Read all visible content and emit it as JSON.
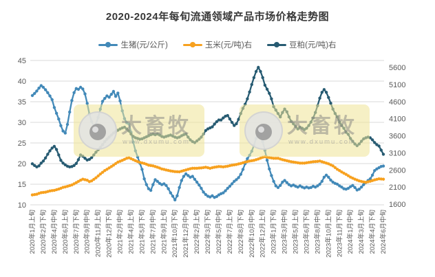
{
  "title": "2020-2024年每旬流通领域产品市场价格走势图",
  "watermark": {
    "brand": "大畜牧",
    "url": "www.dxumu.com"
  },
  "chart_data": {
    "type": "line",
    "title": "2020-2024年每旬流通领域产品市场价格走势图",
    "x_label_every": 5,
    "x_labels": [
      "2020年1月上旬",
      "2020年2月下旬",
      "2020年4月中旬",
      "2020年6月上旬",
      "2020年7月下旬",
      "2020年9月中旬",
      "2020年11月上旬",
      "2020年12月下旬",
      "2021年2月中旬",
      "2021年4月上旬",
      "2021年5月下旬",
      "2021年7月中旬",
      "2021年9月上旬",
      "2021年10月下旬",
      "2021年12月中旬",
      "2022年2月上旬",
      "2022年3月下旬",
      "2022年5月中旬",
      "2022年7月上旬",
      "2022年8月下旬",
      "2022年10月中旬",
      "2022年12月上旬",
      "2023年1月下旬",
      "2023年3月中旬",
      "2023年5月上旬",
      "2023年6月下旬",
      "2023年8月中旬",
      "2023年10月上旬",
      "2023年11月下旬",
      "2024年1月中旬",
      "2024年3月上旬",
      "2024年4月下旬",
      "2024年6月中旬"
    ],
    "axes": {
      "left": {
        "ticks": [
          45,
          40,
          35,
          30,
          25,
          20,
          15,
          10
        ],
        "min": 10,
        "max": 45
      },
      "right": {
        "ticks": [
          5600,
          5100,
          4600,
          4100,
          3600,
          3100,
          2600,
          2100,
          1600
        ],
        "min": 1600,
        "max": 5600
      }
    },
    "colors": {
      "grid": "#d9d9d9",
      "axis_text": "#595959",
      "title_text": "#383838"
    },
    "series": [
      {
        "name": "生猪(元/公斤)",
        "axis": "left",
        "color": "#4289B8",
        "values": [
          36.5,
          37,
          37.6,
          38.3,
          38.9,
          38.5,
          37.9,
          37.2,
          36.4,
          35.5,
          33.6,
          32.2,
          30.8,
          29.2,
          27.9,
          27.4,
          29.5,
          32.5,
          35.3,
          37.2,
          38.2,
          38,
          38.5,
          38.1,
          36.9,
          34.6,
          32,
          30.2,
          29.1,
          29.6,
          31.2,
          33.2,
          35.1,
          35.8,
          36.4,
          36.1,
          36.8,
          37.5,
          36.3,
          37.1,
          35.2,
          32.8,
          30.9,
          29.9,
          29.6,
          27.6,
          25.2,
          23.1,
          21.6,
          20.1,
          18.6,
          16.3,
          14.9,
          13.9,
          13.5,
          14.9,
          16.1,
          15.7,
          15.2,
          14.9,
          15.1,
          14.7,
          13.9,
          12.9,
          12.1,
          11.2,
          12.2,
          14.2,
          15.9,
          16.9,
          17.5,
          17.1,
          16.7,
          16.9,
          16.2,
          15.5,
          14.8,
          14,
          13.1,
          12.5,
          12.1,
          11.9,
          12.2,
          11.8,
          12,
          12.4,
          12.7,
          12.9,
          13.4,
          14,
          14.5,
          15.1,
          15.7,
          16.1,
          16.6,
          17.4,
          18.6,
          20,
          21.2,
          22,
          23,
          24.4,
          26.1,
          27.9,
          27.1,
          25.3,
          23.2,
          20.8,
          18.7,
          17.1,
          15.7,
          14.6,
          14.2,
          14.7,
          15.5,
          15.9,
          15.4,
          14.9,
          14.6,
          14.8,
          14.5,
          14.3,
          14.6,
          14.3,
          14.1,
          14.3,
          14.1,
          14.2,
          14.5,
          14.3,
          14.6,
          15,
          15.7,
          16.7,
          17.2,
          16.7,
          16,
          15.5,
          15.2,
          15,
          14.6,
          14.3,
          13.9,
          13.8,
          14,
          14.4,
          14.7,
          14.2,
          13.6,
          13.8,
          14.3,
          14.9,
          15.4,
          15.9,
          16.3,
          17.2,
          18.3,
          18.7,
          19,
          19.3,
          19.4
        ]
      },
      {
        "name": "玉米(元/吨)右",
        "axis": "right",
        "color": "#F7A11F",
        "values": [
          1870,
          1880,
          1890,
          1915,
          1935,
          1943,
          1950,
          1968,
          1985,
          1995,
          2005,
          2022,
          2040,
          2065,
          2090,
          2105,
          2120,
          2140,
          2160,
          2195,
          2230,
          2265,
          2300,
          2330,
          2315,
          2300,
          2260,
          2280,
          2325,
          2370,
          2425,
          2480,
          2530,
          2580,
          2620,
          2660,
          2700,
          2740,
          2785,
          2830,
          2855,
          2880,
          2910,
          2940,
          2955,
          2930,
          2900,
          2870,
          2845,
          2820,
          2805,
          2790,
          2765,
          2740,
          2730,
          2720,
          2700,
          2680,
          2655,
          2630,
          2615,
          2600,
          2585,
          2570,
          2560,
          2550,
          2548,
          2545,
          2562,
          2580,
          2600,
          2620,
          2635,
          2650,
          2650,
          2650,
          2655,
          2660,
          2670,
          2680,
          2665,
          2650,
          2665,
          2680,
          2690,
          2700,
          2695,
          2690,
          2700,
          2710,
          2725,
          2740,
          2750,
          2760,
          2775,
          2790,
          2810,
          2830,
          2845,
          2860,
          2870,
          2880,
          2900,
          2920,
          2945,
          2970,
          2985,
          2972,
          2960,
          2950,
          2940,
          2940,
          2940,
          2920,
          2900,
          2885,
          2870,
          2855,
          2840,
          2830,
          2820,
          2810,
          2800,
          2800,
          2800,
          2810,
          2820,
          2830,
          2840,
          2845,
          2850,
          2860,
          2840,
          2820,
          2800,
          2780,
          2750,
          2720,
          2670,
          2620,
          2580,
          2540,
          2505,
          2470,
          2430,
          2390,
          2360,
          2330,
          2305,
          2280,
          2265,
          2250,
          2240,
          2255,
          2270,
          2290,
          2310,
          2325,
          2340,
          2335,
          2330
        ]
      },
      {
        "name": "豆粕(元/吨)右",
        "axis": "right",
        "color": "#275B72",
        "values": [
          2780,
          2730,
          2690,
          2720,
          2800,
          2860,
          2950,
          3060,
          3160,
          3240,
          3290,
          3200,
          3040,
          2880,
          2800,
          2750,
          2710,
          2690,
          2700,
          2730,
          2790,
          2900,
          3040,
          3000,
          2940,
          2890,
          2910,
          2960,
          3040,
          3120,
          3190,
          3260,
          3340,
          3430,
          3500,
          3560,
          3620,
          3680,
          3720,
          3760,
          3800,
          3830,
          3850,
          3800,
          3740,
          3650,
          3580,
          3540,
          3520,
          3500,
          3510,
          3540,
          3570,
          3600,
          3630,
          3650,
          3630,
          3650,
          3620,
          3580,
          3560,
          3580,
          3600,
          3620,
          3590,
          3560,
          3540,
          3560,
          3600,
          3630,
          3650,
          3560,
          3480,
          3430,
          3400,
          3450,
          3500,
          3560,
          3650,
          3750,
          3800,
          3830,
          3860,
          3940,
          4010,
          4060,
          4060,
          4120,
          4170,
          4190,
          4090,
          3990,
          3900,
          3950,
          4080,
          4250,
          4400,
          4520,
          4680,
          4880,
          5100,
          5300,
          5480,
          5600,
          5480,
          5300,
          5080,
          4960,
          4840,
          4680,
          4450,
          4350,
          4250,
          4150,
          4280,
          4380,
          4300,
          4150,
          4020,
          3950,
          3870,
          3800,
          3850,
          3820,
          3780,
          3820,
          3900,
          4000,
          4120,
          4280,
          4480,
          4700,
          4870,
          4950,
          4870,
          4720,
          4550,
          4380,
          4250,
          4150,
          4000,
          3900,
          3820,
          3700,
          3640,
          3520,
          3440,
          3360,
          3310,
          3360,
          3440,
          3510,
          3540,
          3560,
          3540,
          3480,
          3400,
          3340,
          3300,
          3180,
          3060
        ]
      }
    ]
  }
}
